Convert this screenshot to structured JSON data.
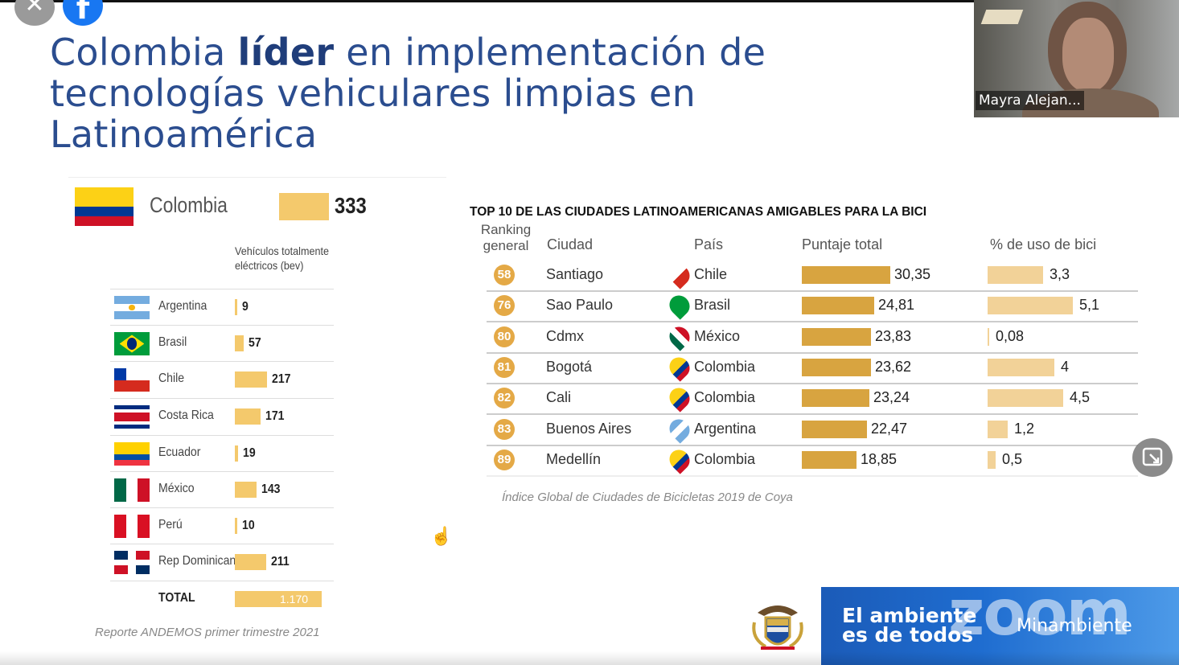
{
  "window": {
    "close_icon": "close-icon",
    "facebook_icon": "facebook-icon"
  },
  "slide": {
    "title_part1": "Colombia ",
    "title_bold": "líder",
    "title_part2": " en implementación de tecnologías vehiculares limpias en Latinoamérica"
  },
  "video": {
    "participant_name": "Mayra Alejan..."
  },
  "left_panel": {
    "highlight": {
      "country": "Colombia",
      "value": "333"
    },
    "bev_label": "Vehículos totalmente eléctricos (bev)",
    "rows": [
      {
        "country": "Argentina",
        "value": 9,
        "label": "9"
      },
      {
        "country": "Brasil",
        "value": 57,
        "label": "57"
      },
      {
        "country": "Chile",
        "value": 217,
        "label": "217"
      },
      {
        "country": "Costa Rica",
        "value": 171,
        "label": "171"
      },
      {
        "country": "Ecuador",
        "value": 19,
        "label": "19"
      },
      {
        "country": "México",
        "value": 143,
        "label": "143"
      },
      {
        "country": "Perú",
        "value": 10,
        "label": "10"
      },
      {
        "country": "Rep Dominicana",
        "value": 211,
        "label": "211"
      }
    ],
    "total_label": "TOTAL",
    "total_value": "1.170",
    "source": "Reporte ANDEMOS primer trimestre 2021"
  },
  "right_panel": {
    "title": "TOP 10 DE LAS CIUDADES LATINOAMERICANAS AMIGABLES PARA LA BICI",
    "headers": {
      "ranking": "Ranking general",
      "city": "Ciudad",
      "country": "País",
      "score": "Puntaje total",
      "usage": "% de uso de bici"
    },
    "rows": [
      {
        "rank": "58",
        "city": "Santiago",
        "country": "Chile",
        "score": 30.35,
        "score_label": "30,35",
        "usage": 3.3,
        "usage_label": "3,3"
      },
      {
        "rank": "76",
        "city": "Sao Paulo",
        "country": "Brasil",
        "score": 24.81,
        "score_label": "24,81",
        "usage": 5.1,
        "usage_label": "5,1"
      },
      {
        "rank": "80",
        "city": "Cdmx",
        "country": "México",
        "score": 23.83,
        "score_label": "23,83",
        "usage": 0.08,
        "usage_label": "0,08"
      },
      {
        "rank": "81",
        "city": "Bogotá",
        "country": "Colombia",
        "score": 23.62,
        "score_label": "23,62",
        "usage": 4,
        "usage_label": "4"
      },
      {
        "rank": "82",
        "city": "Cali",
        "country": "Colombia",
        "score": 23.24,
        "score_label": "23,24",
        "usage": 4.5,
        "usage_label": "4,5"
      },
      {
        "rank": "83",
        "city": "Buenos Aires",
        "country": "Argentina",
        "score": 22.47,
        "score_label": "22,47",
        "usage": 1.2,
        "usage_label": "1,2"
      },
      {
        "rank": "89",
        "city": "Medellín",
        "country": "Colombia",
        "score": 18.85,
        "score_label": "18,85",
        "usage": 0.5,
        "usage_label": "0,5"
      }
    ],
    "source": "Índice Global de Ciudades de Bicicletas 2019 de Coya"
  },
  "banner": {
    "slogan_line1": "El ambiente",
    "slogan_line2": "es de todos",
    "zoom_watermark": "zoom",
    "ministry": "Minambiente"
  },
  "colors": {
    "title": "#2b4d8f",
    "bar_light": "#f4c96c",
    "bar_dark": "#d8a440",
    "rank_badge": "#e4a946",
    "banner_blue": "#1f6dd0"
  }
}
